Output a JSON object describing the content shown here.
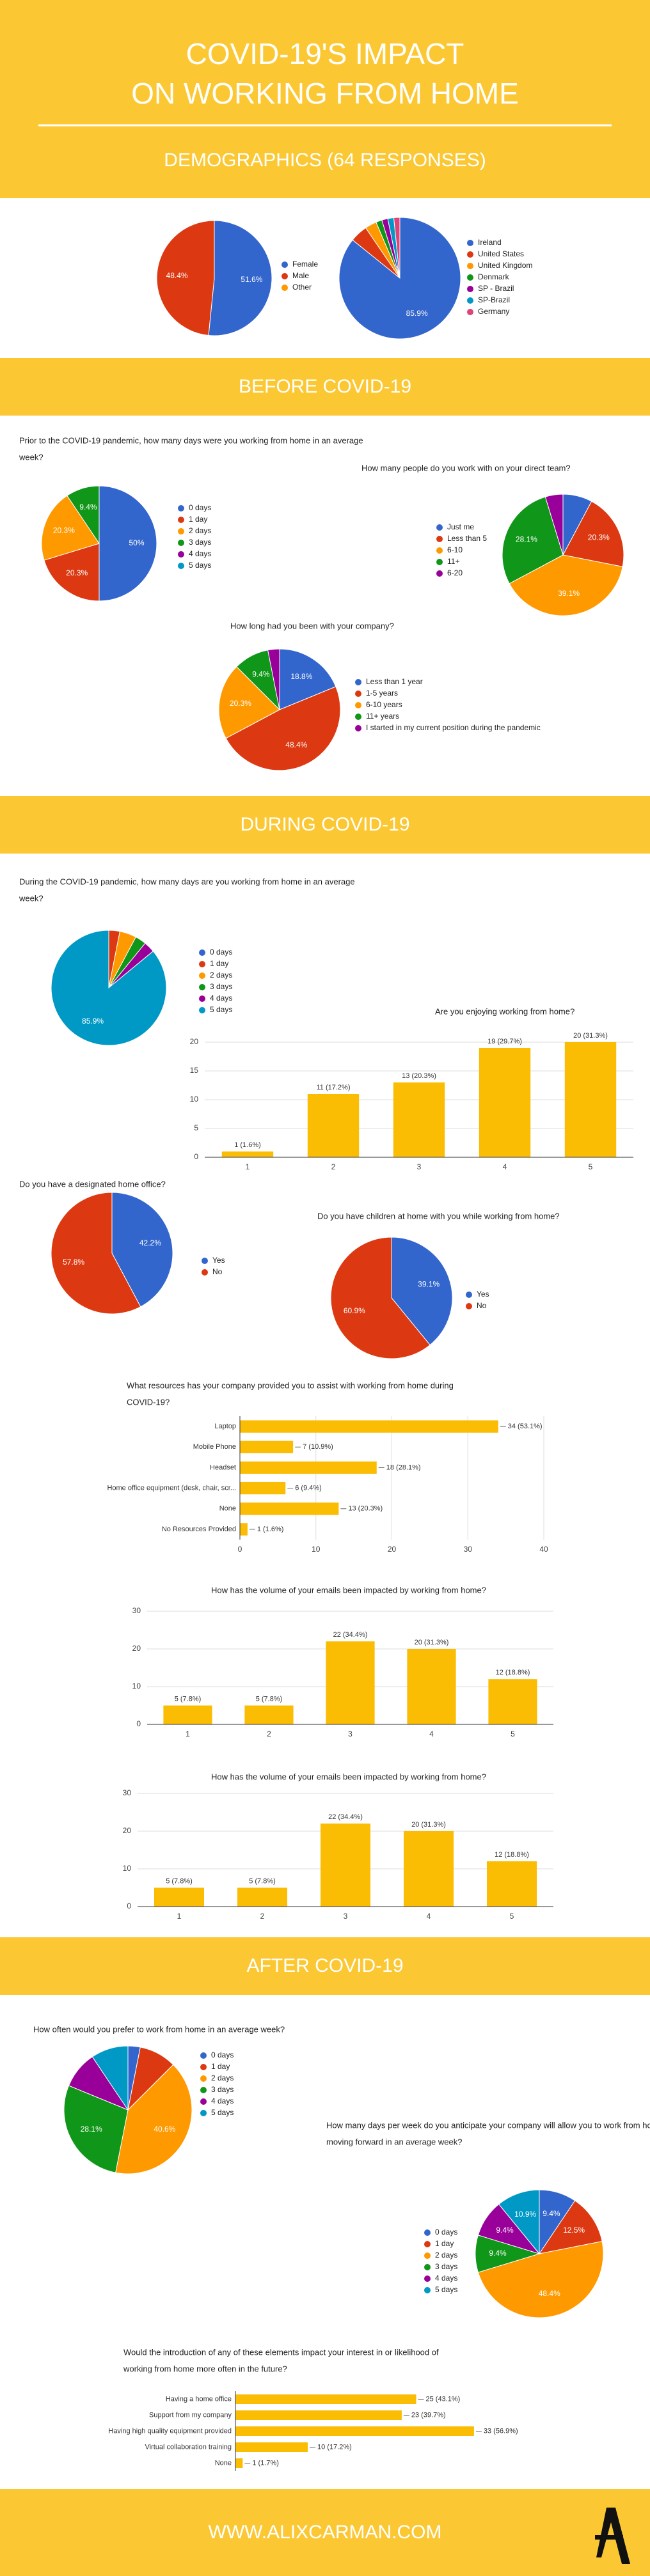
{
  "header": {
    "title": [
      "COVID-19'S IMPACT",
      "ON WORKING FROM HOME"
    ],
    "subtitle": "DEMOGRAPHICS (64 RESPONSES)"
  },
  "sections": [
    "BEFORE COVID-19",
    "DURING COVID-19",
    "AFTER COVID-19"
  ],
  "footer": {
    "url": "WWW.ALIXCARMAN.COM"
  },
  "chart_data": [
    {
      "type": "pie",
      "categories": [
        "Female",
        "Male",
        "Other"
      ],
      "values": [
        51.6,
        48.4,
        0
      ],
      "value_labels": [
        "51.6%",
        "48.4%",
        null
      ],
      "colors": [
        "#3366cc",
        "#dc3912",
        "#ff9900"
      ]
    },
    {
      "type": "pie",
      "categories": [
        "Ireland",
        "United States",
        "United Kingdom",
        "Denmark",
        "SP - Brazil",
        "SP-Brazil",
        "Germany"
      ],
      "values": [
        85.9,
        4.7,
        3.1,
        1.6,
        1.6,
        1.6,
        1.6
      ],
      "value_labels": [
        "85.9%",
        null,
        null,
        null,
        null,
        null,
        null
      ],
      "colors": [
        "#3366cc",
        "#dc3912",
        "#ff9900",
        "#109618",
        "#990099",
        "#0099c6",
        "#dd4477"
      ]
    },
    {
      "type": "pie",
      "title": [
        "Prior to the COVID-19 pandemic, how many days were you working from home in an average",
        "week?"
      ],
      "categories": [
        "0 days",
        "1 day",
        "2 days",
        "3 days",
        "4 days",
        "5 days"
      ],
      "values": [
        50,
        20.3,
        20.3,
        9.4,
        0,
        0
      ],
      "value_labels": [
        "50%",
        "20.3%",
        "20.3%",
        "9.4%",
        null,
        null
      ],
      "colors": [
        "#3366cc",
        "#dc3912",
        "#ff9900",
        "#109618",
        "#990099",
        "#0099c6"
      ]
    },
    {
      "type": "pie",
      "title": [
        "How many people do you work with on your direct team?"
      ],
      "categories": [
        "Just me",
        "Less than 5",
        "6-10",
        "11+",
        "6-20"
      ],
      "values": [
        7.8,
        20.3,
        39.1,
        28.1,
        4.7
      ],
      "value_labels": [
        null,
        "20.3%",
        "39.1%",
        "28.1%",
        null
      ],
      "colors": [
        "#3366cc",
        "#dc3912",
        "#ff9900",
        "#109618",
        "#990099"
      ]
    },
    {
      "type": "pie",
      "title": [
        "How long had you been with your company?"
      ],
      "categories": [
        "Less than 1 year",
        "1-5 years",
        "6-10 years",
        "11+ years",
        "I started in my current position during the pandemic"
      ],
      "values": [
        18.8,
        48.4,
        20.3,
        9.4,
        3.1
      ],
      "value_labels": [
        "18.8%",
        "48.4%",
        "20.3%",
        "9.4%",
        null
      ],
      "colors": [
        "#3366cc",
        "#dc3912",
        "#ff9900",
        "#109618",
        "#990099"
      ]
    },
    {
      "type": "pie",
      "title": [
        "During the COVID-19 pandemic, how many days are you working from home in an average",
        "week?"
      ],
      "categories": [
        "0 days",
        "1 day",
        "2 days",
        "3 days",
        "4 days",
        "5 days"
      ],
      "values": [
        0,
        3.1,
        4.7,
        3.1,
        3.1,
        85.9
      ],
      "value_labels": [
        null,
        null,
        null,
        null,
        null,
        "85.9%"
      ],
      "colors": [
        "#3366cc",
        "#dc3912",
        "#ff9900",
        "#109618",
        "#990099",
        "#0099c6"
      ]
    },
    {
      "type": "bar",
      "title": [
        "Are you enjoying working from home?"
      ],
      "categories": [
        "1",
        "2",
        "3",
        "4",
        "5"
      ],
      "values": [
        1,
        11,
        13,
        19,
        20
      ],
      "value_labels": [
        "1 (1.6%)",
        "11 (17.2%)",
        "13 (20.3%)",
        "19 (29.7%)",
        "20 (31.3%)"
      ],
      "color": "#fbbc04",
      "ylim": [
        0,
        20
      ],
      "yticks": [
        0,
        5,
        10,
        15,
        20
      ],
      "grid": true
    },
    {
      "type": "pie",
      "title": [
        "Do you have a designated home office?"
      ],
      "categories": [
        "Yes",
        "No"
      ],
      "values": [
        42.2,
        57.8
      ],
      "value_labels": [
        "42.2%",
        "57.8%"
      ],
      "colors": [
        "#3366cc",
        "#dc3912"
      ]
    },
    {
      "type": "pie",
      "title": [
        "Do you have children at home with you while working from home?"
      ],
      "categories": [
        "Yes",
        "No"
      ],
      "values": [
        39.1,
        60.9
      ],
      "value_labels": [
        "39.1%",
        "60.9%"
      ],
      "colors": [
        "#3366cc",
        "#dc3912"
      ]
    },
    {
      "type": "hbar",
      "title": [
        "What resources has your company provided you to assist with working from home during",
        "COVID-19?"
      ],
      "categories": [
        "Laptop",
        "Mobile Phone",
        "Headset",
        "Home office equipment (desk, chair, scr...",
        "None",
        "No Resources Provided"
      ],
      "values": [
        34,
        7,
        18,
        6,
        13,
        1
      ],
      "value_labels": [
        "34 (53.1%)",
        "7 (10.9%)",
        "18 (28.1%)",
        "6 (9.4%)",
        "13 (20.3%)",
        "1 (1.6%)"
      ],
      "color": "#fbbc04",
      "xlim": [
        0,
        40
      ],
      "xticks": [
        0,
        10,
        20,
        30,
        40
      ],
      "grid": true
    },
    {
      "type": "bar",
      "title": [
        "How has the volume of your emails been impacted by working from home?"
      ],
      "categories": [
        "1",
        "2",
        "3",
        "4",
        "5"
      ],
      "values": [
        5,
        5,
        22,
        20,
        12
      ],
      "value_labels": [
        "5 (7.8%)",
        "5 (7.8%)",
        "22 (34.4%)",
        "20 (31.3%)",
        "12 (18.8%)"
      ],
      "color": "#fbbc04",
      "ylim": [
        0,
        30
      ],
      "yticks": [
        0,
        10,
        20,
        30
      ],
      "grid": true
    },
    {
      "type": "bar",
      "title": [
        "How has the volume of your emails been impacted by working from home?"
      ],
      "categories": [
        "1",
        "2",
        "3",
        "4",
        "5"
      ],
      "values": [
        5,
        5,
        22,
        20,
        12
      ],
      "value_labels": [
        "5 (7.8%)",
        "5 (7.8%)",
        "22 (34.4%)",
        "20 (31.3%)",
        "12 (18.8%)"
      ],
      "color": "#fbbc04",
      "ylim": [
        0,
        30
      ],
      "yticks": [
        0,
        10,
        20,
        30
      ],
      "grid": true
    },
    {
      "type": "pie",
      "title": [
        "How often would you prefer to work from home in an average week?"
      ],
      "categories": [
        "0 days",
        "1 day",
        "2 days",
        "3 days",
        "4 days",
        "5 days"
      ],
      "values": [
        3.1,
        9.4,
        40.6,
        28.1,
        9.4,
        9.4
      ],
      "value_labels": [
        null,
        null,
        "40.6%",
        "28.1%",
        null,
        null
      ],
      "colors": [
        "#3366cc",
        "#dc3912",
        "#ff9900",
        "#109618",
        "#990099",
        "#0099c6"
      ]
    },
    {
      "type": "pie",
      "title": [
        "How many days per week do you anticipate your company will allow you to work from home",
        "moving forward in an average week?"
      ],
      "categories": [
        "0 days",
        "1 day",
        "2 days",
        "3 days",
        "4 days",
        "5 days"
      ],
      "values": [
        9.4,
        12.5,
        48.4,
        9.4,
        9.4,
        10.9
      ],
      "value_labels": [
        "9.4%",
        "12.5%",
        "48.4%",
        "9.4%",
        "9.4%",
        "10.9%"
      ],
      "colors": [
        "#3366cc",
        "#dc3912",
        "#ff9900",
        "#109618",
        "#990099",
        "#0099c6"
      ]
    },
    {
      "type": "hbar",
      "title": [
        "Would the introduction of any of these elements impact your interest in or likelihood of",
        "working from home more often in the future?"
      ],
      "categories": [
        "Having a home office",
        "Support from my company",
        "Having high quality equipment provided",
        "Virtual collaboration training",
        "None"
      ],
      "values": [
        25,
        23,
        33,
        10,
        1
      ],
      "value_labels": [
        "25 (43.1%)",
        "23 (39.7%)",
        "33 (56.9%)",
        "10 (17.2%)",
        "1 (1.7%)"
      ],
      "color": "#fbbc04",
      "xlim": [
        0,
        40
      ],
      "grid": false
    }
  ]
}
